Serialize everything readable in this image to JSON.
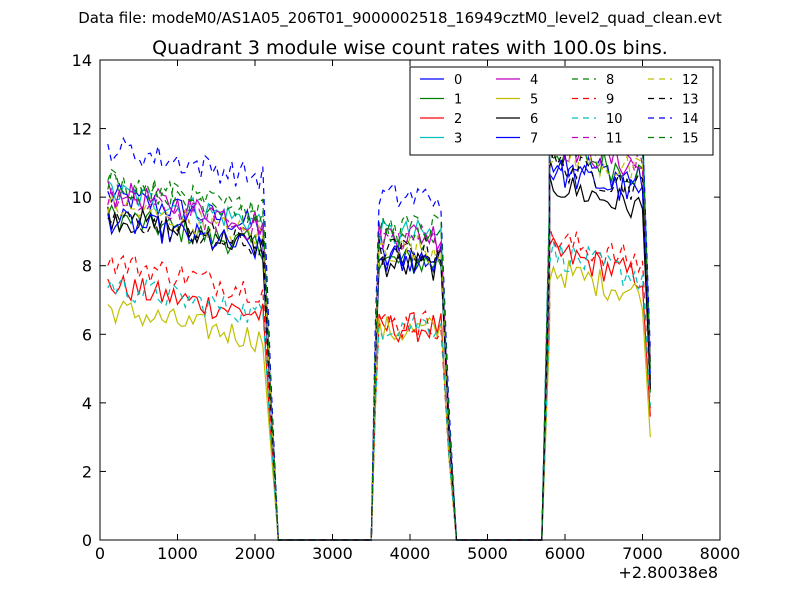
{
  "data_file_label": "Data file: modeM0/AS1A05_206T01_9000002518_16949cztM0_level2_quad_clean.evt",
  "chart_data": {
    "type": "line",
    "title": "Quadrant 3 module wise count rates with 100.0s bins.",
    "xlabel": "",
    "ylabel": "",
    "x_offset_label": "+2.80038e8",
    "xlim": [
      0,
      8000
    ],
    "ylim": [
      0,
      14
    ],
    "xticks": [
      0,
      1000,
      2000,
      3000,
      4000,
      5000,
      6000,
      7000,
      8000
    ],
    "yticks": [
      0,
      2,
      4,
      6,
      8,
      10,
      12,
      14
    ],
    "segments": [
      {
        "start": 100,
        "end": 2100
      },
      {
        "start": 3600,
        "end": 4400
      },
      {
        "start": 5800,
        "end": 7100
      }
    ],
    "gap_drop": [
      2200,
      2300
    ],
    "gap_rise": [
      3500,
      3550
    ],
    "gap2_drop": [
      4500,
      4600
    ],
    "gap2_rise": [
      5700,
      5800
    ],
    "series": [
      {
        "name": "0",
        "color": "#0000ff",
        "style": "solid",
        "levels": [
          9.6,
          8.2,
          10.8
        ],
        "end_value": 4.5
      },
      {
        "name": "1",
        "color": "#008000",
        "style": "solid",
        "levels": [
          9.0,
          8.1,
          11.0
        ],
        "end_value": 4.3
      },
      {
        "name": "2",
        "color": "#ff0000",
        "style": "solid",
        "levels": [
          7.0,
          6.2,
          8.0
        ],
        "end_value": 3.6
      },
      {
        "name": "3",
        "color": "#00bfbf",
        "style": "solid",
        "levels": [
          9.7,
          8.9,
          12.5
        ],
        "end_value": 5.0
      },
      {
        "name": "4",
        "color": "#bf00bf",
        "style": "solid",
        "levels": [
          9.7,
          8.9,
          11.2
        ],
        "end_value": 5.2
      },
      {
        "name": "5",
        "color": "#bfbf00",
        "style": "solid",
        "levels": [
          6.3,
          6.1,
          7.5
        ],
        "end_value": 3.0
      },
      {
        "name": "6",
        "color": "#000000",
        "style": "solid",
        "levels": [
          9.0,
          8.0,
          10.0
        ],
        "end_value": 4.4
      },
      {
        "name": "7",
        "color": "#0000ff",
        "style": "solid",
        "levels": [
          8.9,
          8.2,
          10.4
        ],
        "end_value": 4.8
      },
      {
        "name": "8",
        "color": "#008000",
        "style": "dashed",
        "levels": [
          10.0,
          8.9,
          12.2
        ],
        "end_value": 4.9
      },
      {
        "name": "9",
        "color": "#ff0000",
        "style": "dashed",
        "levels": [
          7.7,
          6.3,
          8.4
        ],
        "end_value": 3.8
      },
      {
        "name": "10",
        "color": "#00bfbf",
        "style": "dashed",
        "levels": [
          7.0,
          6.3,
          8.0
        ],
        "end_value": 3.9
      },
      {
        "name": "11",
        "color": "#bf00bf",
        "style": "dashed",
        "levels": [
          9.5,
          8.8,
          11.4
        ],
        "end_value": 5.3
      },
      {
        "name": "12",
        "color": "#bfbf00",
        "style": "dashed",
        "levels": [
          9.3,
          8.5,
          11.0
        ],
        "end_value": 4.7
      },
      {
        "name": "13",
        "color": "#000000",
        "style": "dashed",
        "levels": [
          9.0,
          8.4,
          10.6
        ],
        "end_value": 4.6
      },
      {
        "name": "14",
        "color": "#0000ff",
        "style": "dashed",
        "levels": [
          11.0,
          10.0,
          12.0
        ],
        "end_value": 5.5
      },
      {
        "name": "15",
        "color": "#008000",
        "style": "dashed",
        "levels": [
          10.0,
          9.1,
          12.1
        ],
        "end_value": 5.1
      }
    ],
    "legend": {
      "location": "top-right",
      "columns": 4
    }
  }
}
